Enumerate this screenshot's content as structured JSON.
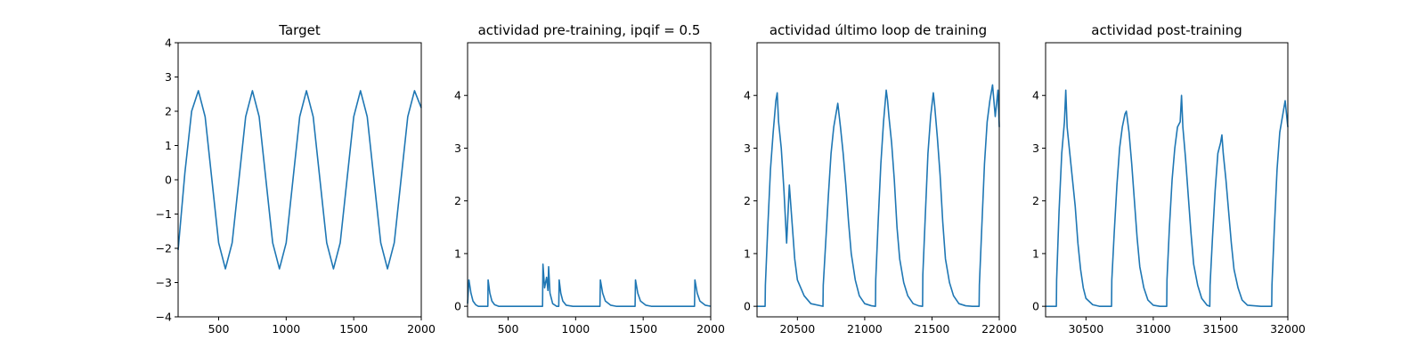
{
  "colors": {
    "series": "#1f77b4",
    "axes": "#000000",
    "background": "#ffffff"
  },
  "chart_data": [
    {
      "type": "line",
      "title": "Target",
      "xlabel": "",
      "ylabel": "",
      "xlim": [
        200,
        2000
      ],
      "ylim": [
        -4,
        4
      ],
      "xticks": [
        500,
        1000,
        1500,
        2000
      ],
      "yticks": [
        -4,
        -3,
        -2,
        -1,
        0,
        1,
        2,
        3,
        4
      ],
      "grid": false,
      "series": [
        {
          "x": [
            200,
            250,
            300,
            350,
            400,
            450,
            500,
            550,
            600,
            650,
            700,
            750,
            800,
            850,
            900,
            950,
            1000,
            1050,
            1100,
            1150,
            1200,
            1250,
            1300,
            1350,
            1400,
            1450,
            1500,
            1550,
            1600,
            1650,
            1700,
            1750,
            1800,
            1850,
            1900,
            1950,
            2000
          ],
          "y": [
            -2.05,
            0.2,
            2.0,
            2.6,
            1.84,
            0,
            -1.84,
            -2.6,
            -1.84,
            0,
            1.84,
            2.6,
            1.84,
            0,
            -1.84,
            -2.6,
            -1.84,
            0,
            1.84,
            2.6,
            1.84,
            0,
            -1.84,
            -2.6,
            -1.84,
            0,
            1.84,
            2.6,
            1.84,
            0,
            -1.84,
            -2.6,
            -1.84,
            0,
            1.84,
            2.6,
            2.1
          ]
        }
      ]
    },
    {
      "type": "line",
      "title": "actividad pre-training, ipqif = 0.5",
      "xlabel": "",
      "ylabel": "",
      "xlim": [
        200,
        2000
      ],
      "ylim": [
        -0.2,
        5
      ],
      "xticks": [
        500,
        1000,
        1500,
        2000
      ],
      "yticks": [
        0,
        1,
        2,
        3,
        4
      ],
      "grid": false,
      "series": [
        {
          "x": [
            200,
            210,
            225,
            240,
            260,
            280,
            300,
            350,
            352,
            365,
            380,
            400,
            430,
            460,
            500,
            600,
            700,
            755,
            758,
            770,
            785,
            795,
            800,
            810,
            830,
            860,
            875,
            878,
            890,
            905,
            930,
            980,
            1050,
            1100,
            1150,
            1180,
            1183,
            1200,
            1220,
            1260,
            1300,
            1350,
            1400,
            1440,
            1443,
            1460,
            1480,
            1520,
            1560,
            1600,
            1700,
            1800,
            1880,
            1883,
            1900,
            1920,
            1960,
            2000
          ],
          "y": [
            0.05,
            0.5,
            0.25,
            0.1,
            0.03,
            0,
            0,
            0,
            0.5,
            0.25,
            0.1,
            0.03,
            0,
            0,
            0,
            0,
            0,
            0,
            0.8,
            0.35,
            0.55,
            0.3,
            0.75,
            0.25,
            0.05,
            0,
            0,
            0.5,
            0.25,
            0.1,
            0.02,
            0,
            0,
            0,
            0,
            0,
            0.5,
            0.25,
            0.1,
            0.02,
            0,
            0,
            0,
            0,
            0.5,
            0.25,
            0.1,
            0.02,
            0,
            0,
            0,
            0,
            0,
            0.5,
            0.25,
            0.1,
            0.02,
            0
          ]
        }
      ]
    },
    {
      "type": "line",
      "title": "actividad último loop de training",
      "xlabel": "",
      "ylabel": "",
      "xlim": [
        20200,
        22000
      ],
      "ylim": [
        -0.2,
        5
      ],
      "xticks": [
        20500,
        21000,
        21500,
        22000
      ],
      "yticks": [
        0,
        1,
        2,
        3,
        4
      ],
      "grid": false,
      "series": [
        {
          "x": [
            20200,
            20260,
            20262,
            20280,
            20300,
            20320,
            20340,
            20350,
            20360,
            20380,
            20400,
            20420,
            20440,
            20460,
            20480,
            20500,
            20550,
            20600,
            20690,
            20692,
            20710,
            20730,
            20750,
            20770,
            20790,
            20800,
            20820,
            20840,
            20860,
            20880,
            20900,
            20930,
            20960,
            21000,
            21050,
            21080,
            21082,
            21100,
            21120,
            21140,
            21160,
            21170,
            21180,
            21200,
            21220,
            21240,
            21260,
            21290,
            21320,
            21360,
            21400,
            21430,
            21432,
            21450,
            21470,
            21490,
            21510,
            21520,
            21540,
            21560,
            21580,
            21600,
            21630,
            21660,
            21700,
            21750,
            21800,
            21850,
            21852,
            21870,
            21890,
            21910,
            21930,
            21950,
            21970,
            21990,
            22000
          ],
          "y": [
            0,
            0,
            0.4,
            1.5,
            2.6,
            3.3,
            3.9,
            4.05,
            3.5,
            3.0,
            2.2,
            1.2,
            2.3,
            1.6,
            0.9,
            0.5,
            0.2,
            0.05,
            0,
            0.4,
            1.2,
            2.1,
            2.9,
            3.4,
            3.7,
            3.85,
            3.4,
            2.9,
            2.3,
            1.6,
            1.0,
            0.5,
            0.2,
            0.05,
            0.01,
            0,
            0.5,
            1.6,
            2.7,
            3.5,
            4.1,
            3.9,
            3.6,
            3.1,
            2.4,
            1.5,
            0.9,
            0.45,
            0.2,
            0.05,
            0.01,
            0,
            0.6,
            1.7,
            2.9,
            3.6,
            4.05,
            3.8,
            3.2,
            2.5,
            1.6,
            0.9,
            0.45,
            0.2,
            0.05,
            0.01,
            0,
            0,
            0.4,
            1.5,
            2.7,
            3.5,
            3.9,
            4.2,
            3.6,
            4.1,
            3.4
          ]
        }
      ]
    },
    {
      "type": "line",
      "title": "actividad post-training",
      "xlabel": "",
      "ylabel": "",
      "xlim": [
        30200,
        32000
      ],
      "ylim": [
        -0.2,
        5
      ],
      "xticks": [
        30500,
        31000,
        31500,
        32000
      ],
      "yticks": [
        0,
        1,
        2,
        3,
        4
      ],
      "grid": false,
      "series": [
        {
          "x": [
            30200,
            30280,
            30282,
            30300,
            30320,
            30340,
            30350,
            30360,
            30380,
            30400,
            30420,
            30440,
            30460,
            30480,
            30500,
            30550,
            30600,
            30690,
            30692,
            30710,
            30730,
            30750,
            30770,
            30790,
            30800,
            30820,
            30840,
            30860,
            30880,
            30900,
            30930,
            30960,
            31000,
            31050,
            31100,
            31102,
            31120,
            31140,
            31160,
            31180,
            31200,
            31210,
            31220,
            31240,
            31260,
            31280,
            31300,
            31330,
            31360,
            31400,
            31420,
            31422,
            31440,
            31460,
            31480,
            31500,
            31510,
            31520,
            31540,
            31560,
            31580,
            31600,
            31630,
            31660,
            31700,
            31800,
            31880,
            31882,
            31900,
            31920,
            31940,
            31960,
            31980,
            32000
          ],
          "y": [
            0,
            0,
            0.5,
            1.8,
            2.9,
            3.5,
            4.1,
            3.4,
            2.9,
            2.4,
            1.9,
            1.2,
            0.7,
            0.35,
            0.15,
            0.03,
            0,
            0,
            0.5,
            1.4,
            2.3,
            3.0,
            3.4,
            3.65,
            3.7,
            3.3,
            2.7,
            2.0,
            1.3,
            0.75,
            0.35,
            0.12,
            0.02,
            0,
            0,
            0.5,
            1.5,
            2.4,
            3.0,
            3.4,
            3.5,
            4.0,
            3.4,
            2.8,
            2.1,
            1.4,
            0.8,
            0.4,
            0.15,
            0.02,
            0,
            0.4,
            1.3,
            2.2,
            2.9,
            3.1,
            3.25,
            2.9,
            2.4,
            1.8,
            1.2,
            0.7,
            0.35,
            0.12,
            0.02,
            0,
            0,
            0.4,
            1.5,
            2.6,
            3.3,
            3.6,
            3.9,
            3.4
          ]
        }
      ]
    }
  ]
}
